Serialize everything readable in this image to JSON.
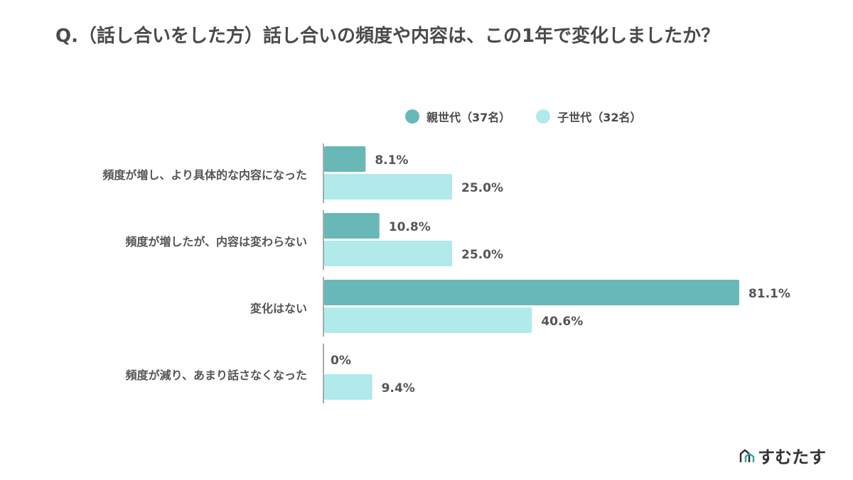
{
  "title": "Q.（話し合いをした方）話し合いの頻度や内容は、この1年で変化しましたか？",
  "logo": "すむたす",
  "chart_data": {
    "type": "bar",
    "orientation": "horizontal",
    "title": "Q.（話し合いをした方）話し合いの頻度や内容は、この1年で変化しましたか？",
    "categories": [
      "頻度が増し、より具体的な内容になった",
      "頻度が増したが、内容は変わらない",
      "変化はない",
      "頻度が減り、あまり話さなくなった"
    ],
    "series": [
      {
        "name": "親世代（37名）",
        "color": "#68b8b8",
        "values": [
          8.1,
          10.8,
          81.1,
          0
        ],
        "labels": [
          "8.1%",
          "10.8%",
          "81.1%",
          "0%"
        ]
      },
      {
        "name": "子世代（32名）",
        "color": "#b0eaeb",
        "values": [
          25.0,
          25.0,
          40.6,
          9.4
        ],
        "labels": [
          "25.0%",
          "25.0%",
          "40.6%",
          "9.4%"
        ]
      }
    ],
    "legend_position": "top-right",
    "grid": false,
    "unit": "%"
  }
}
